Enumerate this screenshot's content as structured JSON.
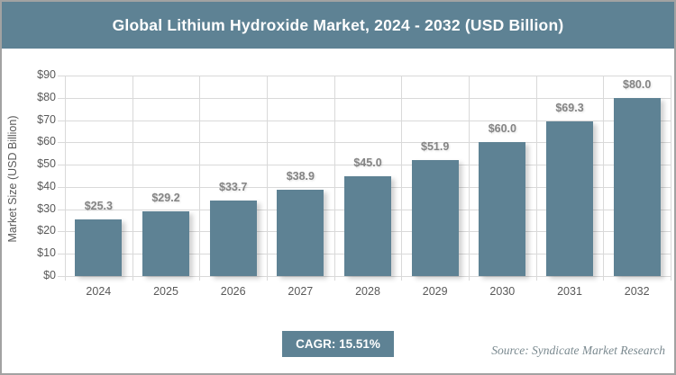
{
  "header": {
    "title": "Global Lithium Hydroxide Market, 2024 - 2032 (USD Billion)"
  },
  "chart_data": {
    "type": "bar",
    "title": "Global Lithium Hydroxide Market, 2024 - 2032 (USD Billion)",
    "categories": [
      "2024",
      "2025",
      "2026",
      "2027",
      "2028",
      "2029",
      "2030",
      "2031",
      "2032"
    ],
    "values": [
      25.3,
      29.2,
      33.7,
      38.9,
      45.0,
      51.9,
      60.0,
      69.3,
      80.0
    ],
    "data_labels": [
      "$25.3",
      "$29.2",
      "$33.7",
      "$38.9",
      "$45.0",
      "$51.9",
      "$60.0",
      "$69.3",
      "$80.0"
    ],
    "xlabel": "",
    "ylabel": "Market Size (USD Billion)",
    "ylim": [
      0,
      90
    ],
    "ytick_step": 10,
    "ytick_labels": [
      "$0",
      "$10",
      "$20",
      "$30",
      "$40",
      "$50",
      "$60",
      "$70",
      "$80",
      "$90"
    ],
    "grid": true,
    "legend": "none",
    "bar_color": "#5e8294"
  },
  "footer": {
    "cagr_label": "CAGR: 15.51%",
    "source": "Source: Syndicate Market Research"
  },
  "colors": {
    "accent": "#5e8294",
    "grid": "#d9d9d9",
    "tick_text": "#595959",
    "value_label_text": "#848484",
    "source_text": "#7b8a90",
    "frame_border": "#a2a2a2"
  }
}
